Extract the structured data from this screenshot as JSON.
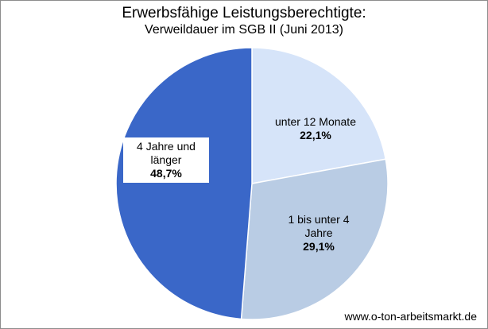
{
  "chart_data": {
    "type": "pie",
    "title": "Erwerbsfähige Leistungsberechtigte:",
    "subtitle": "Verweildauer im SGB II (Juni 2013)",
    "slices": [
      {
        "label": "unter 12 Monate",
        "label_lines": [
          "unter 12 Monate"
        ],
        "value": 22.1,
        "value_label": "22,1%",
        "color": "#d6e4f9"
      },
      {
        "label": "1 bis unter 4 Jahre",
        "label_lines": [
          "1 bis unter 4",
          "Jahre"
        ],
        "value": 29.1,
        "value_label": "29,1%",
        "color": "#b9cce4"
      },
      {
        "label": "4 Jahre und länger",
        "label_lines": [
          "4 Jahre und",
          "länger"
        ],
        "value": 48.7,
        "value_label": "48,7%",
        "color": "#3a67c8"
      }
    ],
    "start_angle": "12 o'clock",
    "direction": "clockwise",
    "legend": "none"
  },
  "footer": {
    "source": "www.o-ton-arbeitsmarkt.de"
  }
}
